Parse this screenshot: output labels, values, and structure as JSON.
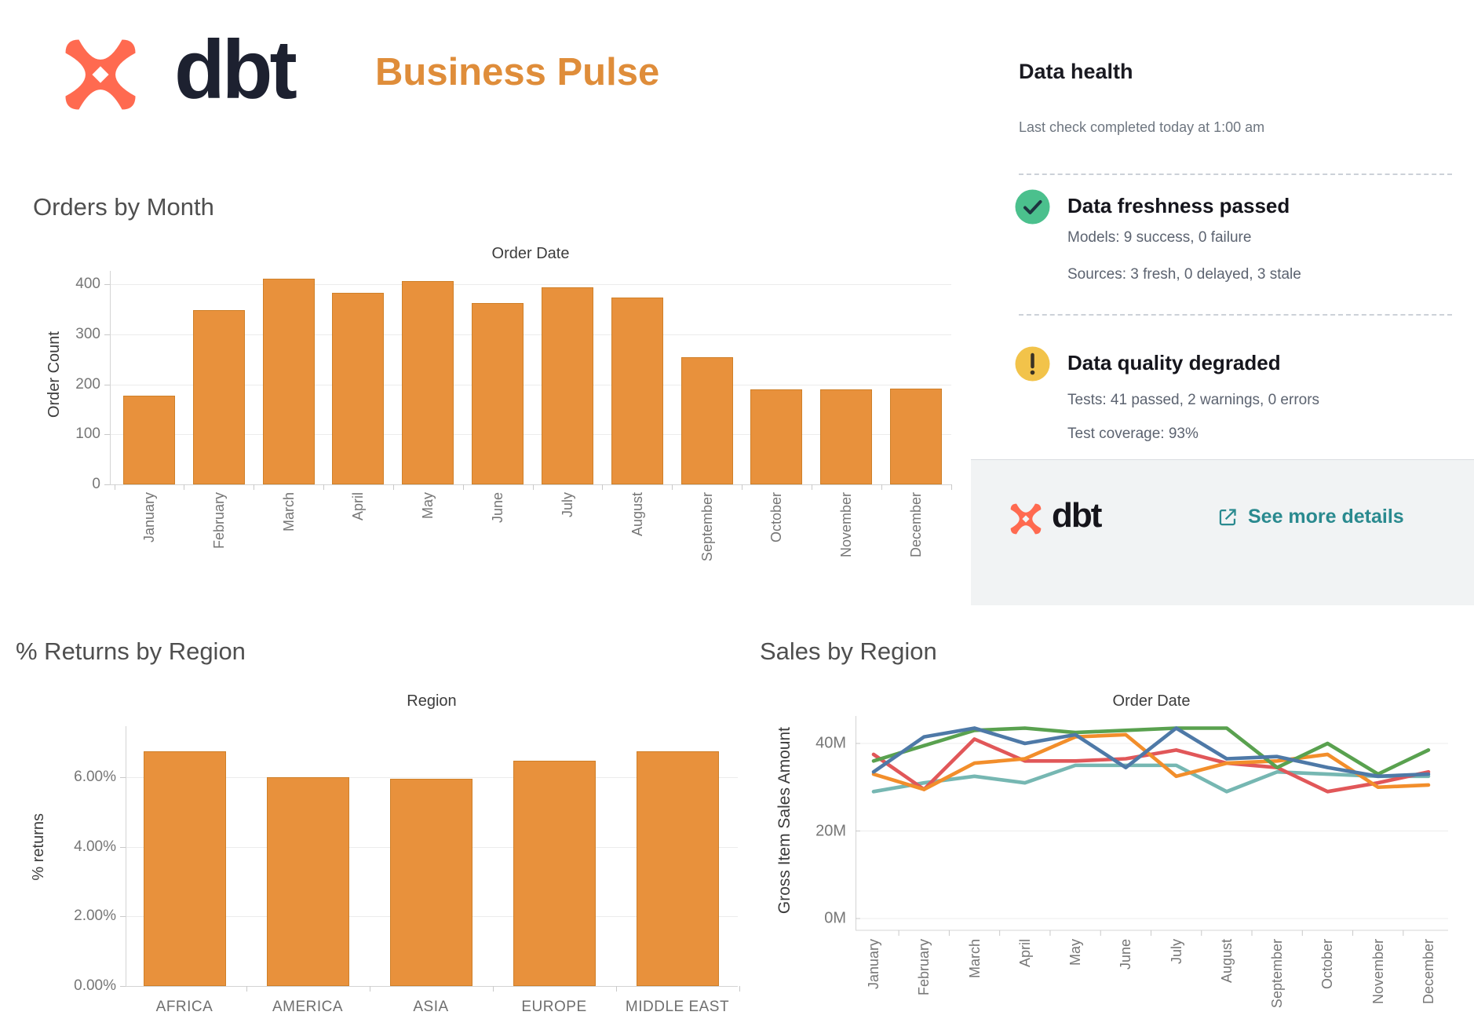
{
  "header": {
    "logo_text": "dbt",
    "title": "Business Pulse"
  },
  "colors": {
    "bar": "#E8913C",
    "accent_orange": "#DF8D3A",
    "dbt_coral": "#FF6A50",
    "link_teal": "#2A8A8F",
    "status_green": "#4BC08D",
    "status_yellow": "#F2C34A"
  },
  "data_health": {
    "title": "Data health",
    "subtitle": "Last check completed today at 1:00 am",
    "freshness": {
      "heading": "Data freshness passed",
      "models": "Models: 9 success, 0 failure",
      "sources": "Sources: 3 fresh, 0 delayed, 3 stale"
    },
    "quality": {
      "heading": "Data quality degraded",
      "tests": "Tests: 41 passed, 2 warnings, 0 errors",
      "coverage": "Test coverage: 93%"
    },
    "footer": {
      "logo_text": "dbt",
      "link_label": "See more details"
    }
  },
  "chart_data": [
    {
      "id": "orders_by_month",
      "type": "bar",
      "title": "Orders by Month",
      "axis_title": "Order Date",
      "xlabel": "",
      "ylabel": "Order Count",
      "categories": [
        "January",
        "February",
        "March",
        "April",
        "May",
        "June",
        "July",
        "August",
        "September",
        "October",
        "November",
        "December"
      ],
      "values": [
        178,
        348,
        411,
        383,
        407,
        362,
        393,
        373,
        254,
        190,
        190,
        192
      ],
      "yticks": [
        0,
        100,
        200,
        300,
        400
      ],
      "ylim": [
        0,
        427
      ],
      "grid": true,
      "legend": "none"
    },
    {
      "id": "returns_by_region",
      "type": "bar",
      "title": "% Returns by Region",
      "axis_title": "Region",
      "xlabel": "",
      "ylabel": "% returns",
      "categories": [
        "AFRICA",
        "AMERICA",
        "ASIA",
        "EUROPE",
        "MIDDLE EAST"
      ],
      "values": [
        6.74,
        6.01,
        5.96,
        6.48,
        6.74
      ],
      "yticks": [
        0,
        2,
        4,
        6
      ],
      "ytick_labels": [
        "0.00%",
        "2.00%",
        "4.00%",
        "6.00%"
      ],
      "ylim": [
        0,
        7.47
      ],
      "grid": true,
      "legend": "none"
    },
    {
      "id": "sales_by_region",
      "type": "line",
      "title": "Sales by Region",
      "axis_title": "Order Date",
      "xlabel": "",
      "ylabel": "Gross Item Sales Amount",
      "categories": [
        "January",
        "February",
        "March",
        "April",
        "May",
        "June",
        "July",
        "August",
        "September",
        "October",
        "November",
        "December"
      ],
      "series": [
        {
          "name": "teal-series",
          "color": "#76b7b2",
          "values": [
            29.0,
            31.0,
            32.5,
            31.0,
            35.0,
            35.0,
            35.0,
            29.0,
            33.5,
            33.0,
            32.5,
            32.5
          ]
        },
        {
          "name": "red-series",
          "color": "#e15759",
          "values": [
            37.5,
            29.5,
            41.0,
            36.0,
            36.0,
            36.5,
            38.5,
            35.5,
            34.5,
            29.0,
            31.0,
            33.5
          ]
        },
        {
          "name": "orange-series",
          "color": "#f28e2b",
          "values": [
            33.0,
            29.5,
            35.5,
            36.5,
            41.5,
            42.0,
            32.5,
            35.5,
            36.0,
            37.5,
            30.0,
            30.5
          ]
        },
        {
          "name": "green-series",
          "color": "#59a14f",
          "values": [
            36.0,
            39.5,
            43.0,
            43.5,
            42.5,
            43.0,
            43.5,
            43.5,
            34.5,
            40.0,
            33.0,
            38.5
          ]
        },
        {
          "name": "blue-series",
          "color": "#4e79a7",
          "values": [
            33.5,
            41.5,
            43.5,
            40.0,
            42.0,
            34.5,
            43.5,
            36.5,
            37.0,
            34.5,
            32.5,
            33.0
          ]
        }
      ],
      "yticks": [
        0,
        20,
        40
      ],
      "ytick_labels": [
        "0M",
        "20M",
        "40M"
      ],
      "ylim": [
        0,
        46
      ],
      "grid": true,
      "legend": "none"
    }
  ]
}
